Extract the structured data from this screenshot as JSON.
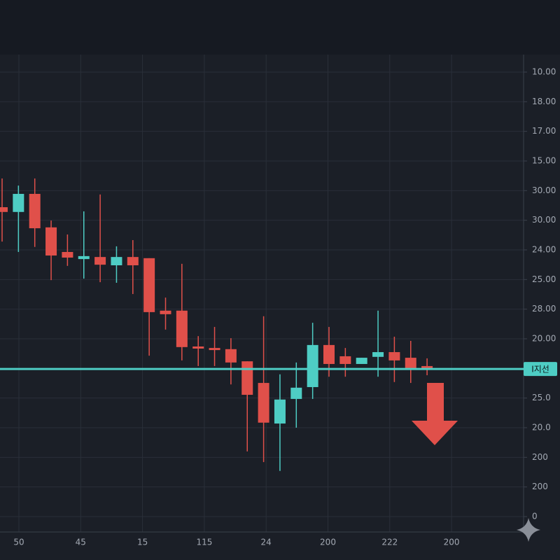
{
  "chart_data": {
    "type": "candlestick",
    "x_labels": [
      "50",
      "45",
      "15",
      "115",
      "24",
      "200",
      "222",
      "200"
    ],
    "open": [
      10.44,
      10.28,
      10.89,
      9.76,
      8.93,
      8.69,
      8.76,
      8.48,
      8.76,
      8.72,
      6.95,
      6.95,
      5.74,
      5.69,
      5.65,
      5.24,
      4.51,
      3.14,
      3.97,
      4.37,
      5.79,
      5.41,
      5.15,
      5.39,
      5.55,
      5.36,
      5.08
    ],
    "high": [
      11.41,
      11.17,
      11.41,
      9.99,
      9.52,
      10.3,
      10.87,
      9.12,
      9.33,
      8.72,
      7.39,
      8.53,
      6.09,
      6.4,
      6.02,
      5.24,
      6.76,
      4.8,
      5.2,
      6.54,
      6.4,
      5.69,
      5.36,
      6.95,
      6.07,
      5.93,
      5.34
    ],
    "low": [
      9.28,
      8.93,
      9.1,
      7.98,
      8.46,
      8.03,
      7.91,
      7.89,
      7.51,
      5.43,
      6.31,
      5.27,
      5.08,
      5.08,
      4.46,
      2.2,
      1.84,
      1.54,
      3.0,
      3.97,
      4.72,
      4.72,
      5.15,
      4.72,
      4.54,
      4.51,
      4.77
    ],
    "close": [
      10.28,
      10.89,
      9.73,
      8.81,
      8.74,
      8.79,
      8.5,
      8.76,
      8.48,
      6.9,
      6.83,
      5.72,
      5.67,
      5.62,
      5.2,
      4.11,
      3.17,
      3.95,
      4.35,
      5.79,
      5.15,
      5.15,
      5.36,
      5.55,
      5.27,
      5.01,
      4.98
    ],
    "color_up": "#4ecdc4",
    "color_down": "#e0504a",
    "ylim": [
      -0.52,
      15.59
    ],
    "yticks": [
      0,
      {
        "value": 1,
        "label": "200"
      },
      {
        "value": 2,
        "label": "200"
      },
      {
        "value": 3,
        "label": "20.0"
      },
      {
        "value": 4,
        "label": "25.0"
      },
      {
        "value": 6,
        "label": "20.00"
      },
      {
        "value": 7,
        "label": "28.00"
      },
      {
        "value": 8,
        "label": "25.00"
      },
      {
        "value": 9,
        "label": "24.00"
      },
      {
        "value": 10,
        "label": "30.00"
      },
      {
        "value": 11,
        "label": "30.00"
      },
      {
        "value": 12,
        "label": "15.00"
      },
      {
        "value": 13,
        "label": "17.00"
      },
      {
        "value": 14,
        "label": "18.00"
      },
      {
        "value": 15,
        "label": "10.00"
      }
    ],
    "grid": true,
    "support_level": {
      "value": 4.98,
      "label": "I지선"
    }
  }
}
